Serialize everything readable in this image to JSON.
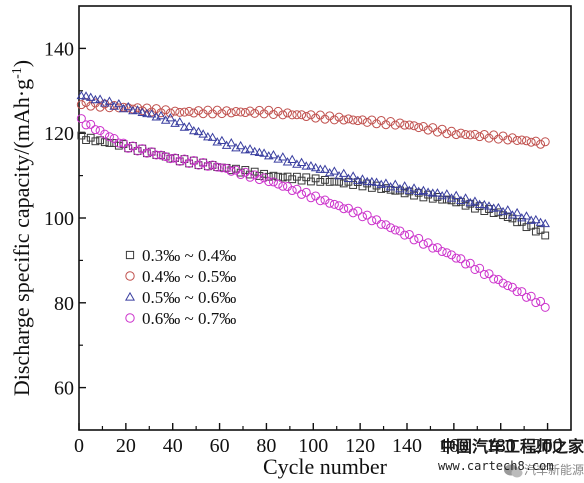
{
  "chart_data": {
    "type": "scatter",
    "title": "",
    "xlabel": "Cycle number",
    "ylabel": "Discharge specific capacity/(mAh·g",
    "ylabel_superscript": "-1",
    "ylabel_close": ")",
    "xlim": [
      0,
      210
    ],
    "ylim": [
      50,
      150
    ],
    "x_ticks": [
      0,
      20,
      40,
      60,
      80,
      100,
      120,
      140,
      160,
      180,
      200
    ],
    "x_tick_labels": [
      "0",
      "20",
      "40",
      "60",
      "80",
      "100",
      "120",
      "140",
      "160",
      "180",
      "200"
    ],
    "y_ticks": [
      60,
      80,
      100,
      120,
      140
    ],
    "y_tick_labels": [
      "60",
      "80",
      "100",
      "120",
      "140"
    ],
    "grid": false,
    "legend_position": "middle-left",
    "series": [
      {
        "name": "0.3‰ ~ 0.4‰",
        "marker": "square",
        "color": "#3a3a3a",
        "points": [
          [
            1,
            119
          ],
          [
            20,
            117
          ],
          [
            40,
            114
          ],
          [
            60,
            112
          ],
          [
            80,
            110
          ],
          [
            100,
            109
          ],
          [
            120,
            108
          ],
          [
            140,
            106
          ],
          [
            160,
            104
          ],
          [
            180,
            101
          ],
          [
            200,
            96
          ]
        ]
      },
      {
        "name": "0.4‰ ~ 0.5‰",
        "marker": "circle",
        "color": "#c0504d",
        "points": [
          [
            1,
            127
          ],
          [
            20,
            126
          ],
          [
            40,
            125
          ],
          [
            60,
            125
          ],
          [
            80,
            125
          ],
          [
            100,
            124
          ],
          [
            120,
            123
          ],
          [
            140,
            122
          ],
          [
            160,
            120
          ],
          [
            180,
            119
          ],
          [
            200,
            117.5
          ]
        ]
      },
      {
        "name": "0.5‰ ~ 0.6‰",
        "marker": "triangle",
        "color": "#3a3fa0",
        "points": [
          [
            1,
            129
          ],
          [
            20,
            126
          ],
          [
            40,
            123
          ],
          [
            60,
            118
          ],
          [
            80,
            115
          ],
          [
            100,
            112
          ],
          [
            120,
            109
          ],
          [
            140,
            107
          ],
          [
            160,
            105
          ],
          [
            180,
            102
          ],
          [
            200,
            98.5
          ]
        ]
      },
      {
        "name": "0.6‰ ~ 0.7‰",
        "marker": "circle",
        "color": "#cc33cc",
        "points": [
          [
            1,
            123
          ],
          [
            20,
            117
          ],
          [
            40,
            114
          ],
          [
            60,
            112
          ],
          [
            80,
            109
          ],
          [
            100,
            105
          ],
          [
            120,
            101
          ],
          [
            140,
            96
          ],
          [
            160,
            91
          ],
          [
            180,
            85
          ],
          [
            200,
            79
          ]
        ]
      }
    ]
  },
  "watermark": {
    "cn_text": "中国汽车工程师之家",
    "url": "www.cartech8.com",
    "wechat_text": "汽车新能源",
    "wechat_icon": "wechat-icon"
  }
}
